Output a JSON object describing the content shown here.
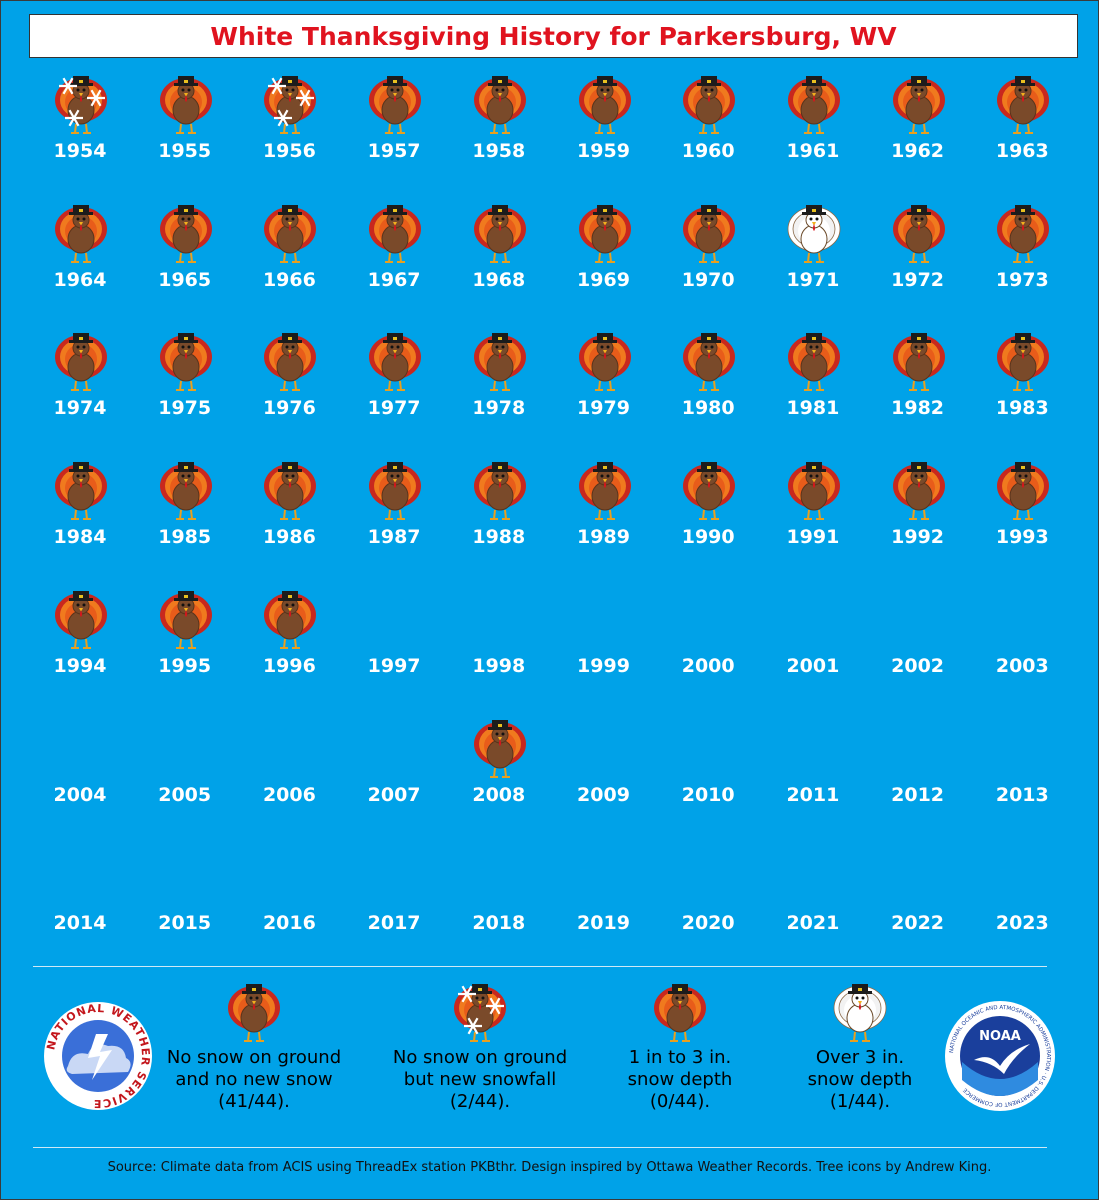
{
  "title": "White Thanksgiving History for Parkersburg, WV",
  "icons": {
    "none": "brown-turkey-icon",
    "snowfall": "brown-turkey-snowflakes-icon",
    "depth_1_3": "white-brown-turkey-icon",
    "depth_over_3": "white-turkey-icon"
  },
  "years": [
    {
      "year": "1954",
      "status": "snowfall"
    },
    {
      "year": "1955",
      "status": "none"
    },
    {
      "year": "1956",
      "status": "snowfall"
    },
    {
      "year": "1957",
      "status": "none"
    },
    {
      "year": "1958",
      "status": "none"
    },
    {
      "year": "1959",
      "status": "none"
    },
    {
      "year": "1960",
      "status": "none"
    },
    {
      "year": "1961",
      "status": "none"
    },
    {
      "year": "1962",
      "status": "none"
    },
    {
      "year": "1963",
      "status": "none"
    },
    {
      "year": "1964",
      "status": "none"
    },
    {
      "year": "1965",
      "status": "none"
    },
    {
      "year": "1966",
      "status": "none"
    },
    {
      "year": "1967",
      "status": "none"
    },
    {
      "year": "1968",
      "status": "none"
    },
    {
      "year": "1969",
      "status": "none"
    },
    {
      "year": "1970",
      "status": "none"
    },
    {
      "year": "1971",
      "status": "depth_over_3"
    },
    {
      "year": "1972",
      "status": "none"
    },
    {
      "year": "1973",
      "status": "none"
    },
    {
      "year": "1974",
      "status": "none"
    },
    {
      "year": "1975",
      "status": "none"
    },
    {
      "year": "1976",
      "status": "none"
    },
    {
      "year": "1977",
      "status": "none"
    },
    {
      "year": "1978",
      "status": "none"
    },
    {
      "year": "1979",
      "status": "none"
    },
    {
      "year": "1980",
      "status": "none"
    },
    {
      "year": "1981",
      "status": "none"
    },
    {
      "year": "1982",
      "status": "none"
    },
    {
      "year": "1983",
      "status": "none"
    },
    {
      "year": "1984",
      "status": "none"
    },
    {
      "year": "1985",
      "status": "none"
    },
    {
      "year": "1986",
      "status": "none"
    },
    {
      "year": "1987",
      "status": "none"
    },
    {
      "year": "1988",
      "status": "none"
    },
    {
      "year": "1989",
      "status": "none"
    },
    {
      "year": "1990",
      "status": "none"
    },
    {
      "year": "1991",
      "status": "none"
    },
    {
      "year": "1992",
      "status": "none"
    },
    {
      "year": "1993",
      "status": "none"
    },
    {
      "year": "1994",
      "status": "none"
    },
    {
      "year": "1995",
      "status": "none"
    },
    {
      "year": "1996",
      "status": "none"
    },
    {
      "year": "1997",
      "status": "missing"
    },
    {
      "year": "1998",
      "status": "missing"
    },
    {
      "year": "1999",
      "status": "missing"
    },
    {
      "year": "2000",
      "status": "missing"
    },
    {
      "year": "2001",
      "status": "missing"
    },
    {
      "year": "2002",
      "status": "missing"
    },
    {
      "year": "2003",
      "status": "missing"
    },
    {
      "year": "2004",
      "status": "missing"
    },
    {
      "year": "2005",
      "status": "missing"
    },
    {
      "year": "2006",
      "status": "missing"
    },
    {
      "year": "2007",
      "status": "missing"
    },
    {
      "year": "2008",
      "status": "none"
    },
    {
      "year": "2009",
      "status": "missing"
    },
    {
      "year": "2010",
      "status": "missing"
    },
    {
      "year": "2011",
      "status": "missing"
    },
    {
      "year": "2012",
      "status": "missing"
    },
    {
      "year": "2013",
      "status": "missing"
    },
    {
      "year": "2014",
      "status": "missing"
    },
    {
      "year": "2015",
      "status": "missing"
    },
    {
      "year": "2016",
      "status": "missing"
    },
    {
      "year": "2017",
      "status": "missing"
    },
    {
      "year": "2018",
      "status": "missing"
    },
    {
      "year": "2019",
      "status": "missing"
    },
    {
      "year": "2020",
      "status": "missing"
    },
    {
      "year": "2021",
      "status": "missing"
    },
    {
      "year": "2022",
      "status": "missing"
    },
    {
      "year": "2023",
      "status": "missing"
    }
  ],
  "legend": [
    {
      "status": "none",
      "label": "No snow on ground and no new snow (41/44)."
    },
    {
      "status": "snowfall",
      "label": "No snow on ground but new snowfall (2/44)."
    },
    {
      "status": "depth_1_3",
      "label": "1 in to 3 in. snow depth (0/44)."
    },
    {
      "status": "depth_over_3",
      "label": "Over 3 in. snow depth (1/44)."
    }
  ],
  "logos": {
    "nws": "NATIONAL WEATHER SERVICE",
    "noaa": "NOAA",
    "noaa_ring": "NATIONAL OCEANIC AND ATMOSPHERIC ADMINISTRATION · U.S. DEPARTMENT OF COMMERCE"
  },
  "source": "Source: Climate data from ACIS using ThreadEx station PKBthr. Design inspired by Ottawa Weather Records. Tree icons by Andrew King.",
  "colors": {
    "background": "#00a2e8",
    "title": "#e0131f",
    "turkey_body": "#7a4a2a",
    "feather_red": "#c8281e",
    "feather_orange": "#f07a1e"
  }
}
